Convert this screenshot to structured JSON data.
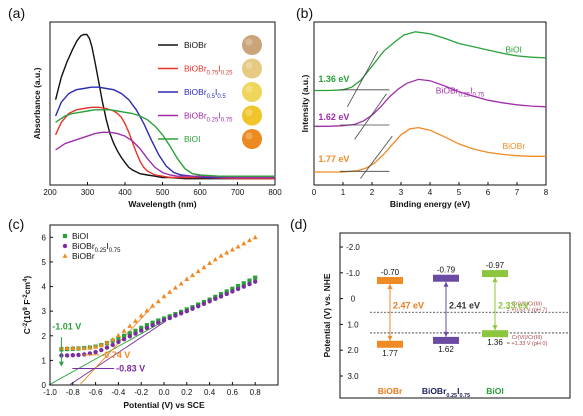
{
  "chart_data": [
    {
      "id": "a",
      "panel_label": "(a)",
      "type": "line",
      "xlabel": "Wavelength (nm)",
      "ylabel": "Absorbance (a.u.)",
      "xlim": [
        200,
        800
      ],
      "xticks": [
        200,
        300,
        400,
        500,
        600,
        700,
        800
      ],
      "ylim": [
        0,
        1.3
      ],
      "grid": false,
      "legend_position": "right",
      "series": [
        {
          "name": "BiOBr",
          "html": "BiOBr",
          "color": "#111111",
          "x": [
            215,
            230,
            245,
            260,
            272,
            282,
            290,
            298,
            305,
            312,
            320,
            330,
            340,
            350,
            360,
            370,
            380,
            390,
            400,
            410,
            420,
            440,
            460,
            480,
            500,
            520,
            560,
            600,
            700,
            800
          ],
          "y": [
            0.68,
            0.86,
            0.98,
            1.08,
            1.15,
            1.19,
            1.2,
            1.2,
            1.17,
            1.1,
            0.98,
            0.82,
            0.66,
            0.52,
            0.41,
            0.33,
            0.27,
            0.22,
            0.18,
            0.14,
            0.12,
            0.09,
            0.08,
            0.07,
            0.06,
            0.06,
            0.05,
            0.05,
            0.05,
            0.05
          ]
        },
        {
          "name": "BiOBr0.75I0.25",
          "html": "BiOBr<tspan baseline-shift='sub' font-size='6'>0.75</tspan>I<tspan baseline-shift='sub' font-size='6'>0.25</tspan>",
          "color": "#e8332a",
          "x": [
            215,
            230,
            250,
            270,
            290,
            310,
            330,
            350,
            370,
            380,
            390,
            400,
            410,
            420,
            430,
            440,
            450,
            460,
            480,
            500,
            520,
            560,
            600,
            700,
            800
          ],
          "y": [
            0.4,
            0.5,
            0.57,
            0.6,
            0.61,
            0.62,
            0.62,
            0.61,
            0.59,
            0.57,
            0.54,
            0.49,
            0.42,
            0.34,
            0.26,
            0.19,
            0.14,
            0.11,
            0.08,
            0.07,
            0.06,
            0.06,
            0.06,
            0.05,
            0.05
          ]
        },
        {
          "name": "BiOBr0.5I0.5",
          "html": "BiOBr<tspan baseline-shift='sub' font-size='6'>0.5</tspan>I<tspan baseline-shift='sub' font-size='6'>0.5</tspan>",
          "color": "#2b2bb3",
          "x": [
            215,
            230,
            250,
            270,
            290,
            310,
            330,
            350,
            370,
            390,
            410,
            430,
            450,
            470,
            490,
            510,
            530,
            550,
            580,
            620,
            700,
            800
          ],
          "y": [
            0.55,
            0.66,
            0.73,
            0.76,
            0.77,
            0.78,
            0.78,
            0.77,
            0.76,
            0.73,
            0.68,
            0.6,
            0.49,
            0.36,
            0.24,
            0.15,
            0.1,
            0.08,
            0.07,
            0.06,
            0.06,
            0.06
          ]
        },
        {
          "name": "BiOBr0.25I0.75",
          "html": "BiOBr<tspan baseline-shift='sub' font-size='6'>0.25</tspan>I<tspan baseline-shift='sub' font-size='6'>0.75</tspan>",
          "color": "#a02eab",
          "x": [
            215,
            240,
            260,
            280,
            300,
            320,
            340,
            360,
            380,
            400,
            420,
            440,
            460,
            480,
            500,
            520,
            540,
            560,
            600,
            700,
            800
          ],
          "y": [
            0.28,
            0.33,
            0.35,
            0.37,
            0.39,
            0.41,
            0.42,
            0.42,
            0.41,
            0.39,
            0.35,
            0.29,
            0.21,
            0.14,
            0.1,
            0.08,
            0.07,
            0.07,
            0.07,
            0.06,
            0.06
          ]
        },
        {
          "name": "BiOI",
          "html": "BiOI",
          "color": "#2aa13a",
          "x": [
            215,
            240,
            260,
            280,
            300,
            320,
            340,
            360,
            380,
            400,
            420,
            440,
            460,
            480,
            500,
            520,
            540,
            560,
            580,
            600,
            650,
            700,
            800
          ],
          "y": [
            0.5,
            0.55,
            0.57,
            0.58,
            0.59,
            0.6,
            0.6,
            0.6,
            0.59,
            0.58,
            0.57,
            0.55,
            0.52,
            0.47,
            0.4,
            0.31,
            0.21,
            0.13,
            0.09,
            0.08,
            0.07,
            0.07,
            0.07
          ]
        }
      ],
      "swatch_colors": [
        "#cba57a",
        "#e6ca82",
        "#efd55a",
        "#f0c52c",
        "#ec8a20"
      ]
    },
    {
      "id": "b",
      "panel_label": "(b)",
      "type": "line",
      "xlabel": "Binding energy (eV)",
      "ylabel": "Intensity (a.u.)",
      "xlim": [
        0,
        8
      ],
      "xticks": [
        0,
        1,
        2,
        3,
        4,
        5,
        6,
        7,
        8
      ],
      "ylim": [
        0,
        2.5
      ],
      "grid": false,
      "series": [
        {
          "name": "BiOI",
          "label": "BiOI",
          "label_x": 6.6,
          "label_y": 2.03,
          "color": "#2aa13a",
          "x": [
            0,
            0.5,
            1,
            1.3,
            1.6,
            2,
            2.4,
            2.8,
            3.1,
            3.5,
            4,
            4.5,
            5,
            5.5,
            6,
            6.5,
            7,
            7.5,
            8
          ],
          "y": [
            1.45,
            1.45,
            1.46,
            1.5,
            1.6,
            1.82,
            2.05,
            2.2,
            2.3,
            2.35,
            2.32,
            2.25,
            2.17,
            2.12,
            2.07,
            2.02,
            1.98,
            1.96,
            1.95
          ]
        },
        {
          "name": "BiOBr0.25I0.75",
          "html": "BiOBr<tspan baseline-shift='sub' font-size='6'>0.25</tspan>I<tspan baseline-shift='sub' font-size='6'>0.75</tspan>",
          "label_x": 4.2,
          "label_y": 1.4,
          "color": "#a02eab",
          "x": [
            0,
            0.5,
            1,
            1.4,
            1.7,
            2,
            2.3,
            2.6,
            2.9,
            3.2,
            3.6,
            4,
            4.5,
            5,
            5.5,
            6,
            6.5,
            7,
            7.5,
            8
          ],
          "y": [
            0.9,
            0.9,
            0.91,
            0.93,
            0.98,
            1.07,
            1.2,
            1.35,
            1.47,
            1.56,
            1.62,
            1.6,
            1.52,
            1.43,
            1.36,
            1.3,
            1.26,
            1.23,
            1.21,
            1.2
          ]
        },
        {
          "name": "BiOBr",
          "label": "BiOBr",
          "label_x": 6.5,
          "label_y": 0.55,
          "color": "#f08a24",
          "x": [
            0,
            0.5,
            1,
            1.5,
            1.8,
            2.1,
            2.4,
            2.7,
            3,
            3.3,
            3.6,
            4,
            4.5,
            5,
            5.5,
            6,
            6.5,
            7,
            7.5,
            8
          ],
          "y": [
            0.2,
            0.2,
            0.2,
            0.22,
            0.26,
            0.34,
            0.47,
            0.62,
            0.77,
            0.86,
            0.88,
            0.84,
            0.74,
            0.63,
            0.55,
            0.5,
            0.47,
            0.45,
            0.44,
            0.44
          ]
        }
      ],
      "onsets": [
        {
          "text": "1.36 eV",
          "value": 1.36,
          "label_x": 0.15,
          "label_y": 1.58,
          "color": "#2aa13a",
          "base_y": 1.46,
          "t_x1": 1.15,
          "t_y1": 1.2,
          "t_x2": 2.2,
          "t_y2": 2.05
        },
        {
          "text": "1.62 eV",
          "value": 1.62,
          "label_x": 0.15,
          "label_y": 1.0,
          "color": "#a02eab",
          "base_y": 0.92,
          "t_x1": 1.4,
          "t_y1": 0.7,
          "t_x2": 2.5,
          "t_y2": 1.4
        },
        {
          "text": "1.77 eV",
          "value": 1.77,
          "label_x": 0.15,
          "label_y": 0.35,
          "color": "#f08a24",
          "base_y": 0.21,
          "t_x1": 1.6,
          "t_y1": 0.1,
          "t_x2": 2.7,
          "t_y2": 0.75
        }
      ]
    },
    {
      "id": "c",
      "panel_label": "(c)",
      "type": "scatter",
      "xlabel": "Potential (V) vs SCE",
      "ylabel": "C-2 (10^9 F^-2 cm^4)",
      "ylabel_html": "C<tspan baseline-shift='super' font-size='6'>-2</tspan>(10<tspan baseline-shift='super' font-size='6'>9</tspan> F<tspan baseline-shift='super' font-size='6'>-2</tspan>cm<tspan baseline-shift='super' font-size='6'>4</tspan>)",
      "xlim": [
        -1.0,
        1.0
      ],
      "xticks": [
        -1.0,
        -0.8,
        -0.6,
        -0.4,
        -0.2,
        0.0,
        0.2,
        0.4,
        0.6,
        0.8
      ],
      "ylim": [
        0,
        6.5
      ],
      "yticks": [
        0,
        1,
        2,
        3,
        4,
        5,
        6
      ],
      "grid": false,
      "legend_position": "top-left",
      "series": [
        {
          "name": "BiOI",
          "color": "#2aa13a",
          "marker": "square",
          "x": [
            -0.9,
            -0.85,
            -0.8,
            -0.75,
            -0.7,
            -0.65,
            -0.6,
            -0.55,
            -0.5,
            -0.45,
            -0.4,
            -0.35,
            -0.3,
            -0.25,
            -0.2,
            -0.15,
            -0.1,
            -0.05,
            0.0,
            0.05,
            0.1,
            0.15,
            0.2,
            0.25,
            0.3,
            0.35,
            0.4,
            0.45,
            0.5,
            0.55,
            0.6,
            0.65,
            0.7,
            0.75,
            0.8
          ],
          "y": [
            1.45,
            1.46,
            1.47,
            1.48,
            1.5,
            1.52,
            1.56,
            1.62,
            1.7,
            1.8,
            1.9,
            2.0,
            2.1,
            2.2,
            2.32,
            2.43,
            2.53,
            2.62,
            2.7,
            2.79,
            2.88,
            2.97,
            3.07,
            3.16,
            3.27,
            3.37,
            3.47,
            3.58,
            3.69,
            3.8,
            3.91,
            4.02,
            4.13,
            4.24,
            4.36
          ]
        },
        {
          "name": "BiOBr0.25I0.75",
          "html": "BiOBr<tspan baseline-shift='sub' font-size='6'>0.25</tspan>I<tspan baseline-shift='sub' font-size='6'>0.75</tspan>",
          "color": "#7a2d9e",
          "marker": "circle",
          "x": [
            -0.9,
            -0.85,
            -0.8,
            -0.75,
            -0.7,
            -0.65,
            -0.6,
            -0.55,
            -0.5,
            -0.45,
            -0.4,
            -0.35,
            -0.3,
            -0.25,
            -0.2,
            -0.15,
            -0.1,
            -0.05,
            0.0,
            0.05,
            0.1,
            0.15,
            0.2,
            0.25,
            0.3,
            0.35,
            0.4,
            0.45,
            0.5,
            0.55,
            0.6,
            0.65,
            0.7,
            0.75,
            0.8
          ],
          "y": [
            1.2,
            1.2,
            1.21,
            1.22,
            1.24,
            1.28,
            1.34,
            1.42,
            1.52,
            1.63,
            1.75,
            1.86,
            1.98,
            2.09,
            2.21,
            2.32,
            2.43,
            2.53,
            2.63,
            2.72,
            2.82,
            2.91,
            3.0,
            3.1,
            3.2,
            3.3,
            3.4,
            3.5,
            3.6,
            3.7,
            3.8,
            3.9,
            4.0,
            4.1,
            4.2
          ]
        },
        {
          "name": "BiOBr",
          "color": "#f08a24",
          "marker": "triangle",
          "x": [
            -0.9,
            -0.85,
            -0.8,
            -0.75,
            -0.7,
            -0.65,
            -0.6,
            -0.55,
            -0.5,
            -0.45,
            -0.4,
            -0.35,
            -0.3,
            -0.25,
            -0.2,
            -0.15,
            -0.1,
            -0.05,
            0.0,
            0.05,
            0.1,
            0.15,
            0.2,
            0.25,
            0.3,
            0.35,
            0.4,
            0.45,
            0.5,
            0.55,
            0.6,
            0.65,
            0.7,
            0.75,
            0.8
          ],
          "y": [
            1.5,
            1.5,
            1.5,
            1.5,
            1.5,
            1.52,
            1.56,
            1.62,
            1.72,
            1.85,
            2.02,
            2.2,
            2.4,
            2.6,
            2.82,
            3.02,
            3.22,
            3.4,
            3.6,
            3.78,
            3.95,
            4.12,
            4.3,
            4.46,
            4.62,
            4.78,
            4.95,
            5.1,
            5.25,
            5.38,
            5.5,
            5.62,
            5.75,
            5.88,
            6.0
          ]
        }
      ],
      "fits": [
        {
          "color": "#2aa13a",
          "x1": -1.01,
          "y1": 0,
          "x2": 0.0,
          "y2": 2.6
        },
        {
          "color": "#7a2d9e",
          "x1": -0.83,
          "y1": 0,
          "x2": 0.0,
          "y2": 2.55
        },
        {
          "color": "#f08a24",
          "x1": -0.74,
          "y1": 0,
          "x2": -0.1,
          "y2": 3.2
        }
      ],
      "annotations": [
        {
          "text": "-1.01 V",
          "color": "#2aa13a",
          "label_x": -0.98,
          "label_y": 2.25,
          "arrow_x": -0.9,
          "arrow_y1": 1.95,
          "arrow_y2": 0.95
        },
        {
          "text": "-0.74 V",
          "color": "#f08a24",
          "label_x": -0.55,
          "label_y": 1.1,
          "arrow_x": -0.74,
          "arrow_y1": 1.1,
          "arrow_y2": 1.1
        },
        {
          "text": "-0.83 V",
          "color": "#7a2d9e",
          "label_x": -0.42,
          "label_y": 0.55,
          "arrow_x": -0.83,
          "arrow_y1": 0.55,
          "arrow_y2": 0.55
        }
      ]
    },
    {
      "id": "d",
      "panel_label": "(d)",
      "type": "other",
      "ylabel": "Potential (V) vs. NHE",
      "ylim": [
        -2.0,
        3.0
      ],
      "yticks": [
        -2.0,
        -1.0,
        0.0,
        1.0,
        2.0,
        3.0
      ],
      "yticklabels": [
        "-2.0",
        "-1.0",
        "0",
        "1.0",
        "2.0",
        "3.0"
      ],
      "materials": [
        {
          "name": "BiOBr",
          "html": "BiOBr",
          "color": "#f08a24",
          "label_color": "#e87a1c",
          "cb": -0.7,
          "vb": 1.77,
          "cb_label": "-0.70",
          "vb_label": "1.77",
          "gap_label": "2.47 eV",
          "gap_color": "#e87a1c"
        },
        {
          "name": "BiOBr0.25I0.75",
          "html": "BiOBr<tspan baseline-shift='sub' font-size='5.5'>0.25</tspan>I<tspan baseline-shift='sub' font-size='5.5'>0.75</tspan>",
          "color": "#6a4aa3",
          "label_color": "#1e1e5c",
          "cb": -0.79,
          "vb": 1.62,
          "cb_label": "-0.79",
          "vb_label": "1.62",
          "gap_label": "2.41 eV",
          "gap_color": "#333333"
        },
        {
          "name": "BiOI",
          "html": "BiOI",
          "color": "#8cc63e",
          "label_color": "#2aa13a",
          "cb": -0.97,
          "vb": 1.36,
          "cb_label": "-0.97",
          "vb_label": "1.36",
          "gap_label": "2.33 eV",
          "gap_color": "#8cc63e"
        }
      ],
      "references": [
        {
          "value": 0.53,
          "line1": "Cr(VI)/Cr(III)",
          "line2": "= +0.53 V (pH 7)"
        },
        {
          "value": 1.33,
          "line1": "Cr(VI)/Cr(III)",
          "line2": "= +1.33 V (pH 0)"
        }
      ]
    }
  ]
}
